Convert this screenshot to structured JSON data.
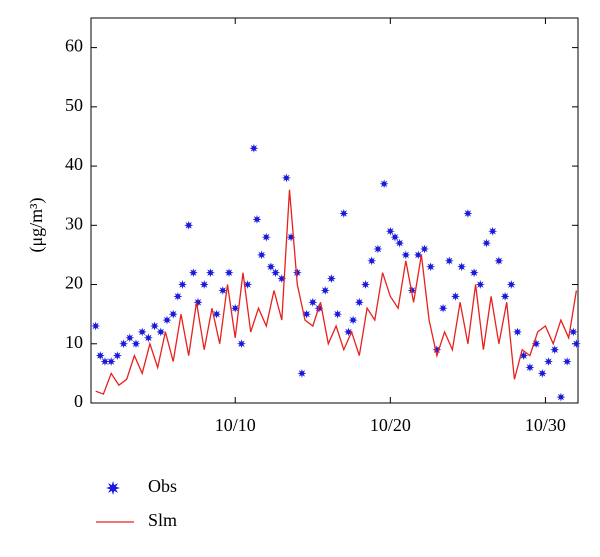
{
  "chart_data": {
    "type": "scatter-line",
    "ylabel": "(μg/m³)",
    "xlim": [
      0.7,
      32.1
    ],
    "ylim": [
      0,
      65
    ],
    "xticks": [
      {
        "value": 10,
        "label": "10/10"
      },
      {
        "value": 20,
        "label": "10/20"
      },
      {
        "value": 30,
        "label": "10/30"
      }
    ],
    "yticks": [
      0,
      10,
      20,
      30,
      40,
      50,
      60
    ],
    "series": [
      {
        "name": "Obs",
        "color": "#1a1adb",
        "marker": "star",
        "x": [
          1,
          1.3,
          1.6,
          2,
          2.4,
          2.8,
          3.2,
          3.6,
          4,
          4.4,
          4.8,
          5.2,
          5.6,
          6,
          6.3,
          6.6,
          7,
          7.3,
          7.6,
          8,
          8.4,
          8.8,
          9.2,
          9.6,
          10,
          10.4,
          10.8,
          11.2,
          11.4,
          11.7,
          12,
          12.3,
          12.6,
          13,
          13.3,
          13.6,
          14,
          14.3,
          14.6,
          15,
          15.4,
          15.8,
          16.2,
          16.6,
          17,
          17.3,
          17.6,
          18,
          18.4,
          18.8,
          19.2,
          19.6,
          20,
          20.3,
          20.6,
          21,
          21.4,
          21.8,
          22.2,
          22.6,
          23,
          23.4,
          23.8,
          24.2,
          24.6,
          25,
          25.4,
          25.8,
          26.2,
          26.6,
          27,
          27.4,
          27.8,
          28.2,
          28.6,
          29,
          29.4,
          29.8,
          30.2,
          30.6,
          31,
          31.4,
          31.8,
          32
        ],
        "values": [
          13,
          8,
          7,
          7,
          8,
          10,
          11,
          10,
          12,
          11,
          13,
          12,
          14,
          15,
          18,
          20,
          30,
          22,
          17,
          20,
          22,
          15,
          19,
          22,
          16,
          10,
          20,
          43,
          31,
          25,
          28,
          23,
          22,
          21,
          38,
          28,
          22,
          5,
          15,
          17,
          16,
          19,
          21,
          15,
          32,
          12,
          14,
          17,
          20,
          24,
          26,
          37,
          29,
          28,
          27,
          25,
          19,
          25,
          26,
          23,
          9,
          16,
          24,
          18,
          23,
          32,
          22,
          20,
          27,
          29,
          24,
          18,
          20,
          12,
          8,
          6,
          10,
          5,
          7,
          9,
          1,
          7,
          12,
          10
        ]
      },
      {
        "name": "Slm",
        "color": "#e8201e",
        "marker": "line",
        "x": [
          1,
          1.5,
          2,
          2.5,
          3,
          3.5,
          4,
          4.5,
          5,
          5.5,
          6,
          6.5,
          7,
          7.5,
          8,
          8.5,
          9,
          9.5,
          10,
          10.5,
          11,
          11.5,
          12,
          12.5,
          13,
          13.5,
          14,
          14.5,
          15,
          15.5,
          16,
          16.5,
          17,
          17.5,
          18,
          18.5,
          19,
          19.5,
          20,
          20.5,
          21,
          21.5,
          22,
          22.5,
          23,
          23.5,
          24,
          24.5,
          25,
          25.5,
          26,
          26.5,
          27,
          27.5,
          28,
          28.5,
          29,
          29.5,
          30,
          30.5,
          31,
          31.5,
          32
        ],
        "values": [
          2,
          1.5,
          5,
          3,
          4,
          8,
          5,
          10,
          6,
          12,
          7,
          15,
          8,
          17,
          9,
          16,
          10,
          20,
          11,
          22,
          12,
          16,
          13,
          19,
          14,
          36,
          20,
          14,
          13,
          17,
          10,
          13,
          9,
          12,
          8,
          16,
          14,
          22,
          18,
          16,
          24,
          17,
          25,
          14,
          8,
          12,
          9,
          17,
          10,
          20,
          9,
          18,
          10,
          17,
          4,
          9,
          8,
          12,
          13,
          10,
          14,
          11,
          19
        ]
      }
    ]
  }
}
